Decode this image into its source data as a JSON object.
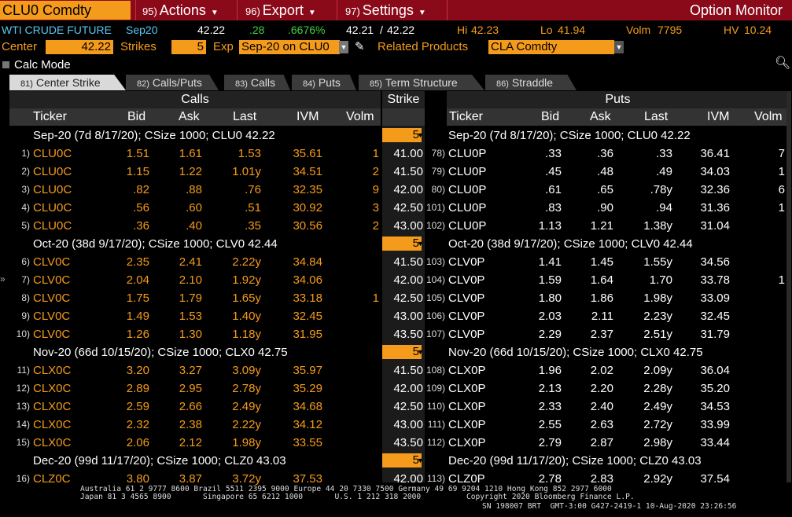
{
  "menubar": {
    "ticker": "CLU0 Comdty",
    "menus": [
      {
        "num": "95)",
        "label": "Actions"
      },
      {
        "num": "96)",
        "label": "Export"
      },
      {
        "num": "97)",
        "label": "Settings"
      }
    ],
    "title": "Option Monitor"
  },
  "info": {
    "name": "WTI CRUDE FUTURE",
    "expiry": "Sep20",
    "last": "42.22",
    "change": ".28",
    "pct": ".6676%",
    "bid_ask": "42.21",
    "ask": "42.22",
    "hi_label": "Hi",
    "hi": "42.23",
    "lo_label": "Lo",
    "lo": "41.94",
    "volm_label": "Volm",
    "volm": "7795",
    "hv_label": "HV",
    "hv": "10.24"
  },
  "settings": {
    "center_label": "Center",
    "center_value": "42.22",
    "strikes_label": "Strikes",
    "strikes_value": "5",
    "exp_label": "Exp",
    "exp_value": "Sep-20 on CLU0",
    "related_label": "Related Products",
    "related_value": "CLA Comdty"
  },
  "calc_mode": "Calc Mode",
  "tabs": [
    {
      "num": "81)",
      "label": "Center Strike"
    },
    {
      "num": "82)",
      "label": "Calls/Puts"
    },
    {
      "num": "83)",
      "label": "Calls"
    },
    {
      "num": "84)",
      "label": "Puts"
    },
    {
      "num": "85)",
      "label": "Term Structure"
    },
    {
      "num": "86)",
      "label": "Straddle"
    }
  ],
  "table": {
    "calls_header": "Calls",
    "strike_header": "Strike",
    "puts_header": "Puts",
    "columns": [
      "Ticker",
      "Bid",
      "Ask",
      "Last",
      "IVM",
      "Volm"
    ],
    "groups": [
      {
        "label_calls": "Sep-20 (7d 8/17/20); CSize 1000; CLU0 42.22",
        "label_puts": "Sep-20 (7d 8/17/20); CSize 1000; CLU0 42.22",
        "strikes": "5",
        "rows": [
          {
            "ci": "1)",
            "ct": "CLU0C",
            "cb": "1.51",
            "ca": "1.61",
            "cl": "1.53",
            "cv": "35.61",
            "cvol": "1",
            "k": "41.00",
            "pi": "78)",
            "pt": "CLU0P",
            "pb": ".33",
            "pa": ".36",
            "pl": ".33",
            "pv": "36.41",
            "pvol": "7"
          },
          {
            "ci": "2)",
            "ct": "CLU0C",
            "cb": "1.15",
            "ca": "1.22",
            "cl": "1.01y",
            "cv": "34.51",
            "cvol": "2",
            "k": "41.50",
            "pi": "79)",
            "pt": "CLU0P",
            "pb": ".45",
            "pa": ".48",
            "pl": ".49",
            "pv": "34.03",
            "pvol": "1"
          },
          {
            "ci": "3)",
            "ct": "CLU0C",
            "cb": ".82",
            "ca": ".88",
            "cl": ".76",
            "cv": "32.35",
            "cvol": "9",
            "k": "42.00",
            "pi": "80)",
            "pt": "CLU0P",
            "pb": ".61",
            "pa": ".65",
            "pl": ".78y",
            "pv": "32.36",
            "pvol": "6"
          },
          {
            "ci": "4)",
            "ct": "CLU0C",
            "cb": ".56",
            "ca": ".60",
            "cl": ".51",
            "cv": "30.92",
            "cvol": "3",
            "k": "42.50",
            "pi": "101)",
            "pt": "CLU0P",
            "pb": ".83",
            "pa": ".90",
            "pl": ".94",
            "pv": "31.36",
            "pvol": "1"
          },
          {
            "ci": "5)",
            "ct": "CLU0C",
            "cb": ".36",
            "ca": ".40",
            "cl": ".35",
            "cv": "30.56",
            "cvol": "2",
            "k": "43.00",
            "pi": "102)",
            "pt": "CLU0P",
            "pb": "1.13",
            "pa": "1.21",
            "pl": "1.38y",
            "pv": "31.04",
            "pvol": ""
          }
        ]
      },
      {
        "label_calls": "Oct-20 (38d 9/17/20); CSize 1000; CLV0 42.44",
        "label_puts": "Oct-20 (38d 9/17/20); CSize 1000; CLV0 42.44",
        "strikes": "5",
        "rows": [
          {
            "ci": "6)",
            "ct": "CLV0C",
            "cb": "2.35",
            "ca": "2.41",
            "cl": "2.22y",
            "cv": "34.84",
            "cvol": "",
            "k": "41.50",
            "pi": "103)",
            "pt": "CLV0P",
            "pb": "1.41",
            "pa": "1.45",
            "pl": "1.55y",
            "pv": "34.56",
            "pvol": ""
          },
          {
            "ci": "7)",
            "ct": "CLV0C",
            "cb": "2.04",
            "ca": "2.10",
            "cl": "1.92y",
            "cv": "34.06",
            "cvol": "",
            "k": "42.00",
            "pi": "104)",
            "pt": "CLV0P",
            "pb": "1.59",
            "pa": "1.64",
            "pl": "1.70",
            "pv": "33.78",
            "pvol": "1"
          },
          {
            "ci": "8)",
            "ct": "CLV0C",
            "cb": "1.75",
            "ca": "1.79",
            "cl": "1.65y",
            "cv": "33.18",
            "cvol": "1",
            "k": "42.50",
            "pi": "105)",
            "pt": "CLV0P",
            "pb": "1.80",
            "pa": "1.86",
            "pl": "1.98y",
            "pv": "33.09",
            "pvol": ""
          },
          {
            "ci": "9)",
            "ct": "CLV0C",
            "cb": "1.49",
            "ca": "1.53",
            "cl": "1.40y",
            "cv": "32.45",
            "cvol": "",
            "k": "43.00",
            "pi": "106)",
            "pt": "CLV0P",
            "pb": "2.03",
            "pa": "2.11",
            "pl": "2.23y",
            "pv": "32.45",
            "pvol": ""
          },
          {
            "ci": "10)",
            "ct": "CLV0C",
            "cb": "1.26",
            "ca": "1.30",
            "cl": "1.18y",
            "cv": "31.95",
            "cvol": "",
            "k": "43.50",
            "pi": "107)",
            "pt": "CLV0P",
            "pb": "2.29",
            "pa": "2.37",
            "pl": "2.51y",
            "pv": "31.79",
            "pvol": ""
          }
        ]
      },
      {
        "label_calls": "Nov-20 (66d 10/15/20); CSize 1000; CLX0 42.75",
        "label_puts": "Nov-20 (66d 10/15/20); CSize 1000; CLX0 42.75",
        "strikes": "5",
        "rows": [
          {
            "ci": "11)",
            "ct": "CLX0C",
            "cb": "3.20",
            "ca": "3.27",
            "cl": "3.09y",
            "cv": "35.97",
            "cvol": "",
            "k": "41.50",
            "pi": "108)",
            "pt": "CLX0P",
            "pb": "1.96",
            "pa": "2.02",
            "pl": "2.09y",
            "pv": "36.04",
            "pvol": ""
          },
          {
            "ci": "12)",
            "ct": "CLX0C",
            "cb": "2.89",
            "ca": "2.95",
            "cl": "2.78y",
            "cv": "35.29",
            "cvol": "",
            "k": "42.00",
            "pi": "109)",
            "pt": "CLX0P",
            "pb": "2.13",
            "pa": "2.20",
            "pl": "2.28y",
            "pv": "35.20",
            "pvol": ""
          },
          {
            "ci": "13)",
            "ct": "CLX0C",
            "cb": "2.59",
            "ca": "2.66",
            "cl": "2.49y",
            "cv": "34.68",
            "cvol": "",
            "k": "42.50",
            "pi": "110)",
            "pt": "CLX0P",
            "pb": "2.33",
            "pa": "2.40",
            "pl": "2.49y",
            "pv": "34.53",
            "pvol": ""
          },
          {
            "ci": "14)",
            "ct": "CLX0C",
            "cb": "2.32",
            "ca": "2.38",
            "cl": "2.22y",
            "cv": "34.12",
            "cvol": "",
            "k": "43.00",
            "pi": "111)",
            "pt": "CLX0P",
            "pb": "2.55",
            "pa": "2.63",
            "pl": "2.72y",
            "pv": "33.99",
            "pvol": ""
          },
          {
            "ci": "15)",
            "ct": "CLX0C",
            "cb": "2.06",
            "ca": "2.12",
            "cl": "1.98y",
            "cv": "33.55",
            "cvol": "",
            "k": "43.50",
            "pi": "112)",
            "pt": "CLX0P",
            "pb": "2.79",
            "pa": "2.87",
            "pl": "2.98y",
            "pv": "33.44",
            "pvol": ""
          }
        ]
      },
      {
        "label_calls": "Dec-20 (99d 11/17/20); CSize 1000; CLZ0 43.03",
        "label_puts": "Dec-20 (99d 11/17/20); CSize 1000; CLZ0 43.03",
        "strikes": "5",
        "rows": [
          {
            "ci": "16)",
            "ct": "CLZ0C",
            "cb": "3.80",
            "ca": "3.87",
            "cl": "3.72y",
            "cv": "37.53",
            "cvol": "",
            "k": "42.00",
            "pi": "113)",
            "pt": "CLZ0P",
            "pb": "2.78",
            "pa": "2.83",
            "pl": "2.92y",
            "pv": "37.54",
            "pvol": ""
          }
        ]
      }
    ]
  },
  "footer": {
    "line1": "Australia 61 2 9777 8600 Brazil 5511 2395 9000 Europe 44 20 7330 7500 Germany 49 69 9204 1210 Hong Kong 852 2977 6000",
    "line2": "Japan 81 3 4565 8900       Singapore 65 6212 1000       U.S. 1 212 318 2000          Copyright 2020 Bloomberg Finance L.P.",
    "line3": "SN 198007 BRT  GMT-3:00 G427-2419-1 10-Aug-2020 23:26:56"
  },
  "colors": {
    "menubar": "#8b0a1a",
    "accent_orange": "#f59b1b",
    "cyan": "#56c8f2",
    "green": "#3fd13f"
  }
}
